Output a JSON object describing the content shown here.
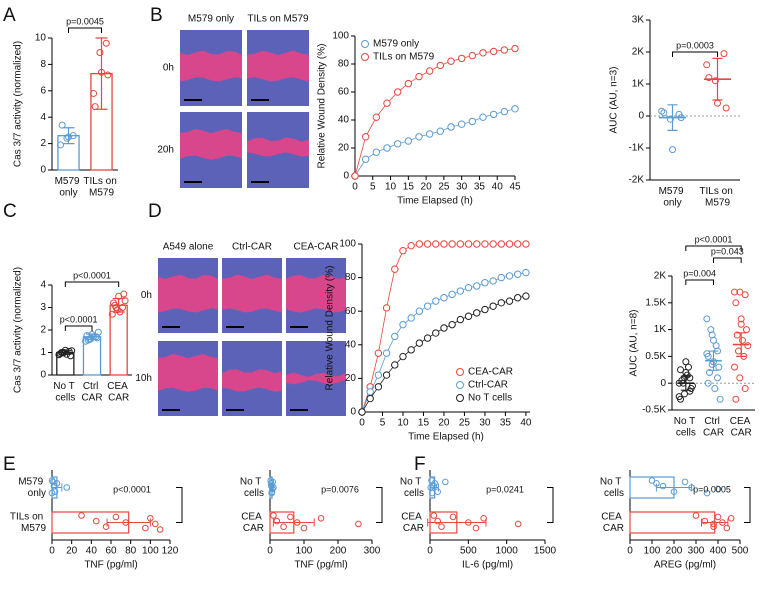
{
  "panel_letters": [
    "A",
    "B",
    "C",
    "D",
    "E",
    "F"
  ],
  "images": [
    {
      "columns": [
        "M579 only",
        "TILs on M579"
      ],
      "rows": [
        "0h",
        "20h"
      ]
    },
    {
      "columns": [
        "A549 alone",
        "Ctrl-CAR",
        "CEA-CAR"
      ],
      "rows": [
        "0h",
        "10h"
      ]
    }
  ],
  "chart_data": [
    {
      "type": "bar",
      "ylabel": "Cas 3/7 activity (normalized)",
      "categories": [
        "M579 only",
        "TILs on M579"
      ],
      "colors": [
        "#5b9bd5",
        "#e8473e"
      ],
      "values": [
        2.6,
        7.3
      ],
      "errors": [
        0.6,
        2.7
      ],
      "points": [
        [
          1.9,
          2.4,
          2.6,
          3.4,
          2.5
        ],
        [
          5.8,
          8.9,
          9.6,
          4.8,
          7.4,
          7.2
        ]
      ],
      "ylim": [
        0,
        10
      ],
      "yticks": [
        0,
        2,
        4,
        6,
        8,
        10
      ],
      "annotations": [
        "p=0.0045"
      ]
    },
    {
      "type": "line",
      "xlabel": "Time Elapsed (h)",
      "ylabel": "Relative Wound Density (%)",
      "x": [
        0,
        3,
        6,
        9,
        12,
        15,
        18,
        21,
        24,
        27,
        30,
        33,
        36,
        39,
        42,
        45
      ],
      "series": [
        {
          "name": "M579 only",
          "color": "#5b9bd5",
          "values": [
            0,
            12,
            17,
            20,
            23,
            25,
            28,
            30,
            32,
            35,
            37,
            39,
            42,
            44,
            46,
            48
          ]
        },
        {
          "name": "TILs on M579",
          "color": "#e8473e",
          "values": [
            0,
            28,
            42,
            52,
            60,
            66,
            71,
            75,
            79,
            82,
            84,
            86,
            88,
            89,
            90,
            91
          ]
        }
      ],
      "xlim": [
        0,
        45
      ],
      "xticks": [
        0,
        5,
        10,
        15,
        20,
        25,
        30,
        35,
        40,
        45
      ],
      "ylim": [
        0,
        100
      ],
      "yticks": [
        0,
        20,
        40,
        60,
        80,
        100
      ],
      "legend": "upper left"
    },
    {
      "type": "dot",
      "ylabel": "AUC (AU, n=3)",
      "categories": [
        "M579 only",
        "TILs on M579"
      ],
      "colors": [
        "#5b9bd5",
        "#e8473e"
      ],
      "values": [
        -50,
        1150
      ],
      "errors": [
        400,
        650
      ],
      "points": [
        [
          150,
          -100,
          50,
          100,
          -1050,
          -50
        ],
        [
          1600,
          1100,
          1950,
          1200,
          400,
          250
        ]
      ],
      "ylim": [
        -2000,
        3000
      ],
      "yticks": [
        {
          "value": -2000,
          "label": "-2K"
        },
        {
          "value": -1000,
          "label": "-1K"
        },
        0,
        {
          "value": 1000,
          "label": "1K"
        },
        {
          "value": 2000,
          "label": "2K"
        },
        {
          "value": 3000,
          "label": "3K"
        }
      ],
      "zero_line": true,
      "annotations": [
        "p=0.0003"
      ]
    },
    {
      "type": "bar",
      "ylabel": "Cas 3/7 activity (normalized)",
      "categories": [
        "No T cells",
        "Ctrl CAR",
        "CEA CAR"
      ],
      "colors": [
        "#222222",
        "#5b9bd5",
        "#e8473e"
      ],
      "values": [
        1.0,
        1.7,
        3.1
      ],
      "errors": [
        0.08,
        0.12,
        0.3
      ],
      "points": [
        [
          0.9,
          1.0,
          1.05,
          0.95,
          1.1,
          0.85,
          1.0,
          0.92,
          1.08,
          0.98
        ],
        [
          1.5,
          1.6,
          1.7,
          1.75,
          1.8,
          1.65,
          1.55,
          1.7,
          1.9,
          1.6
        ],
        [
          2.7,
          2.9,
          3.0,
          3.2,
          3.5,
          3.6,
          3.1,
          2.8,
          3.3,
          3.0
        ]
      ],
      "ylim": [
        0,
        4
      ],
      "yticks": [
        0,
        1,
        2,
        3,
        4
      ],
      "annotations": [
        "p<0.0001",
        "p<0.0001"
      ]
    },
    {
      "type": "line",
      "xlabel": "Time Elapsed (h)",
      "ylabel": "Relative Wound Density (%)",
      "x": [
        0,
        2,
        4,
        6,
        8,
        10,
        12,
        14,
        16,
        18,
        20,
        22,
        24,
        26,
        28,
        30,
        32,
        34,
        36,
        38,
        40
      ],
      "series": [
        {
          "name": "CEA-CAR",
          "color": "#e8473e",
          "values": [
            0,
            15,
            35,
            62,
            85,
            96,
            99,
            100,
            100,
            100,
            100,
            100,
            100,
            100,
            100,
            100,
            100,
            100,
            100,
            100,
            100
          ]
        },
        {
          "name": "Ctrl-CAR",
          "color": "#5b9bd5",
          "values": [
            0,
            12,
            22,
            35,
            45,
            52,
            56,
            60,
            63,
            66,
            68,
            70,
            72,
            74,
            75,
            77,
            78,
            80,
            81,
            82,
            83
          ]
        },
        {
          "name": "No T cells",
          "color": "#222222",
          "values": [
            0,
            8,
            15,
            22,
            28,
            33,
            37,
            41,
            44,
            47,
            50,
            52,
            55,
            57,
            59,
            61,
            63,
            65,
            66,
            68,
            69
          ]
        }
      ],
      "xlim": [
        0,
        41
      ],
      "xticks": [
        0,
        5,
        10,
        15,
        20,
        25,
        30,
        35,
        40
      ],
      "ylim": [
        0,
        100
      ],
      "yticks": [
        0,
        20,
        40,
        60,
        80,
        100
      ],
      "legend": "lower right"
    },
    {
      "type": "dot",
      "ylabel": "AUC (AU, n=8)",
      "categories": [
        "No T cells",
        "Ctrl CAR",
        "CEA CAR"
      ],
      "colors": [
        "#222222",
        "#5b9bd5",
        "#e8473e"
      ],
      "values": [
        0,
        420,
        720
      ],
      "errors": [
        130,
        180,
        220
      ],
      "points": [
        [
          0,
          -200,
          100,
          -300,
          200,
          -100,
          50,
          150,
          -50,
          0,
          300,
          -250,
          100,
          -150,
          250,
          400
        ],
        [
          1200,
          900,
          600,
          500,
          400,
          300,
          200,
          -100,
          -300,
          1000,
          700,
          550,
          350,
          100,
          0,
          800
        ],
        [
          1700,
          1700,
          1650,
          1500,
          1200,
          1000,
          900,
          800,
          700,
          600,
          500,
          300,
          100,
          -100,
          -300,
          1100
        ]
      ],
      "ylim": [
        -500,
        2000
      ],
      "yticks": [
        {
          "value": -500,
          "label": "-0.5K"
        },
        0,
        {
          "value": 500,
          "label": "0.5K"
        },
        {
          "value": 1000,
          "label": "1K"
        },
        {
          "value": 1500,
          "label": "1.5K"
        },
        {
          "value": 2000,
          "label": "2K"
        }
      ],
      "zero_line": true,
      "annotations": [
        "p<0.0001",
        "p=0.043",
        "p=0.004"
      ]
    },
    {
      "type": "hbar",
      "xlabel": "TNF (pg/ml)",
      "categories": [
        "M579 only",
        "TILs on M579"
      ],
      "colors": [
        "#5b9bd5",
        "#e8473e"
      ],
      "values": [
        5,
        78
      ],
      "errors": [
        5,
        22
      ],
      "points": [
        [
          0,
          2,
          3,
          1,
          15,
          0,
          5
        ],
        [
          30,
          45,
          55,
          65,
          75,
          95,
          100,
          105,
          110
        ]
      ],
      "xlim": [
        0,
        120
      ],
      "xticks": [
        0,
        20,
        40,
        60,
        80,
        100,
        120
      ],
      "annotations": [
        "p<0.0001"
      ]
    },
    {
      "type": "hbar",
      "xlabel": "TNF (pg/ml)",
      "categories": [
        "No T cells",
        "CEA CAR"
      ],
      "colors": [
        "#5b9bd5",
        "#e8473e"
      ],
      "values": [
        6,
        70
      ],
      "errors": [
        3,
        60
      ],
      "points": [
        [
          2,
          4,
          6,
          8,
          10,
          5,
          3,
          7
        ],
        [
          10,
          20,
          40,
          60,
          80,
          100,
          150,
          260
        ]
      ],
      "xlim": [
        0,
        300
      ],
      "xticks": [
        0,
        100,
        200,
        300
      ],
      "annotations": [
        "p=0.0076"
      ]
    },
    {
      "type": "hbar",
      "xlabel": "IL-6 (pg/ml)",
      "categories": [
        "No T cells",
        "CEA CAR"
      ],
      "colors": [
        "#5b9bd5",
        "#e8473e"
      ],
      "values": [
        60,
        350
      ],
      "errors": [
        50,
        380
      ],
      "points": [
        [
          20,
          50,
          100,
          200,
          10,
          30,
          60
        ],
        [
          50,
          100,
          150,
          300,
          500,
          600,
          700,
          1150
        ]
      ],
      "xlim": [
        0,
        1500
      ],
      "xticks": [
        0,
        500,
        1000,
        1500
      ],
      "annotations": [
        "p=0.0241"
      ]
    },
    {
      "type": "hbar",
      "xlabel": "AREG (pg/ml)",
      "categories": [
        "No T cells",
        "CEA CAR"
      ],
      "colors": [
        "#5b9bd5",
        "#e8473e"
      ],
      "values": [
        200,
        385
      ],
      "errors": [
        80,
        60
      ],
      "points": [
        [
          100,
          150,
          200,
          250,
          280,
          350,
          120,
          400
        ],
        [
          300,
          340,
          380,
          400,
          420,
          440,
          460,
          380
        ]
      ],
      "xlim": [
        0,
        500
      ],
      "xticks": [
        0,
        100,
        200,
        300,
        400,
        500
      ],
      "annotations": [
        "p=0.0005"
      ]
    }
  ]
}
